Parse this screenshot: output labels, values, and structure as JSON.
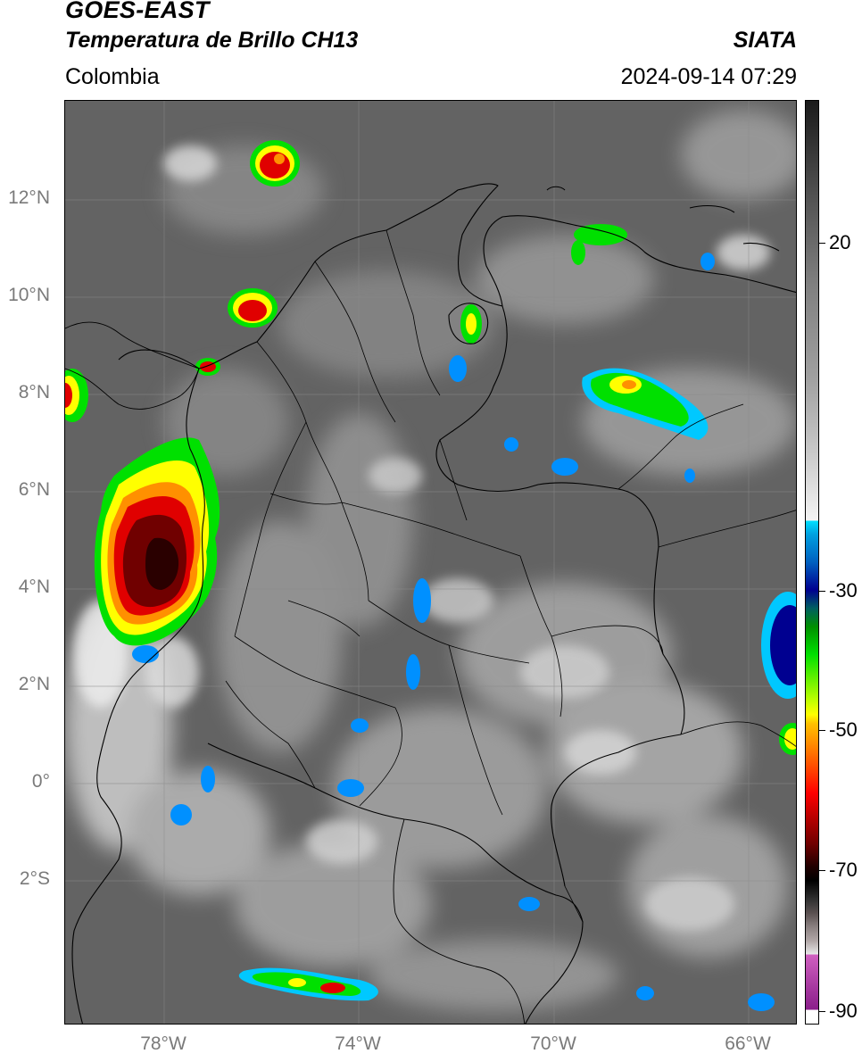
{
  "header": {
    "satellite": "GOES-EAST",
    "product": "Temperatura de Brillo CH13",
    "agency": "SIATA",
    "region": "Colombia",
    "timestamp": "2024-09-14 07:29"
  },
  "axes": {
    "latitude_labels": [
      "12°N",
      "10°N",
      "8°N",
      "6°N",
      "4°N",
      "2°N",
      "0°",
      "2°S"
    ],
    "longitude_labels": [
      "78°W",
      "74°W",
      "70°W",
      "66°W"
    ]
  },
  "colorbar": {
    "tick_labels": [
      "20",
      "-30",
      "-50",
      "-70",
      "-90"
    ],
    "colors": {
      "cold_magenta": "#b030a0",
      "black": "#000000",
      "dark_red": "#600000",
      "red": "#ff0000",
      "orange": "#ff9000",
      "yellow": "#ffff00",
      "green": "#00c000",
      "dark_blue": "#000090",
      "cyan": "#00d8ff",
      "warm_gray": "#5a5a5a"
    }
  },
  "map": {
    "background_color": "#636363",
    "graticule": "on",
    "borders": "national and departmental boundaries, black"
  }
}
